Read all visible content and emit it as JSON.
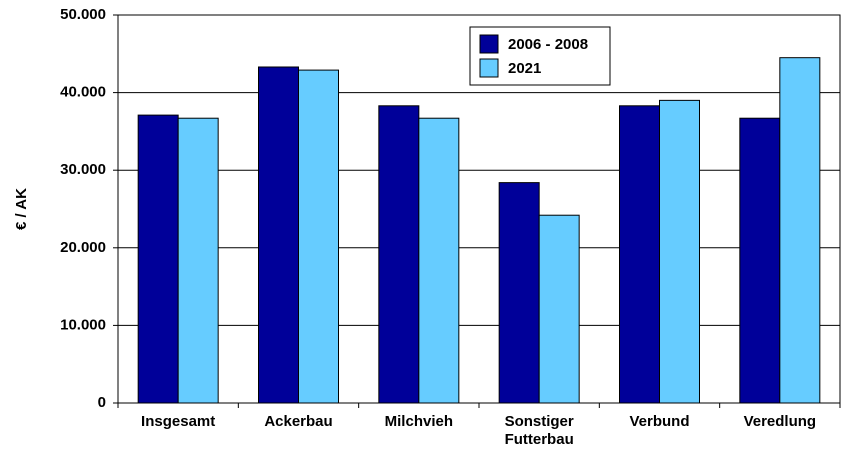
{
  "chart_data": {
    "type": "bar",
    "y_label": "€ / AK",
    "categories": [
      "Insgesamt",
      "Ackerbau",
      "Milchvieh",
      "Sonstiger Futterbau",
      "Verbund",
      "Veredlung"
    ],
    "series": [
      {
        "name": "2006 - 2008",
        "color": "#000099",
        "values": [
          37100,
          43300,
          38300,
          28400,
          38300,
          36700
        ]
      },
      {
        "name": "2021",
        "color": "#66ccff",
        "values": [
          36700,
          42900,
          36700,
          24200,
          39000,
          44500
        ]
      }
    ],
    "ylim": [
      0,
      50000
    ],
    "yticks": [
      0,
      {
        "value": 10000,
        "label": "10.000"
      },
      {
        "value": 20000,
        "label": "20.000"
      },
      {
        "value": 30000,
        "label": "30.000"
      },
      {
        "value": 40000,
        "label": "40.000"
      },
      {
        "value": 50000,
        "label": "50.000"
      }
    ],
    "grid": true
  }
}
